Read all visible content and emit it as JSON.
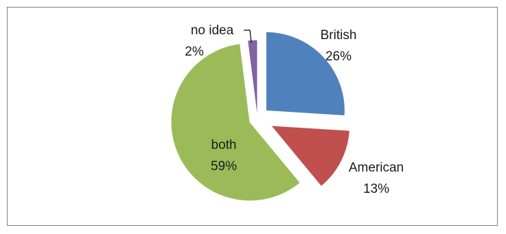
{
  "chart_data": {
    "type": "pie",
    "title": "",
    "exploded": true,
    "slices": [
      {
        "label": "British",
        "percent_label": "26%",
        "value": 26,
        "color": "#4F81BD"
      },
      {
        "label": "American",
        "percent_label": "13%",
        "value": 13,
        "color": "#C0504D"
      },
      {
        "label": "both",
        "percent_label": "59%",
        "value": 59,
        "color": "#9BBB59"
      },
      {
        "label": "no idea",
        "percent_label": "2%",
        "value": 2,
        "color": "#8064A2"
      }
    ]
  }
}
